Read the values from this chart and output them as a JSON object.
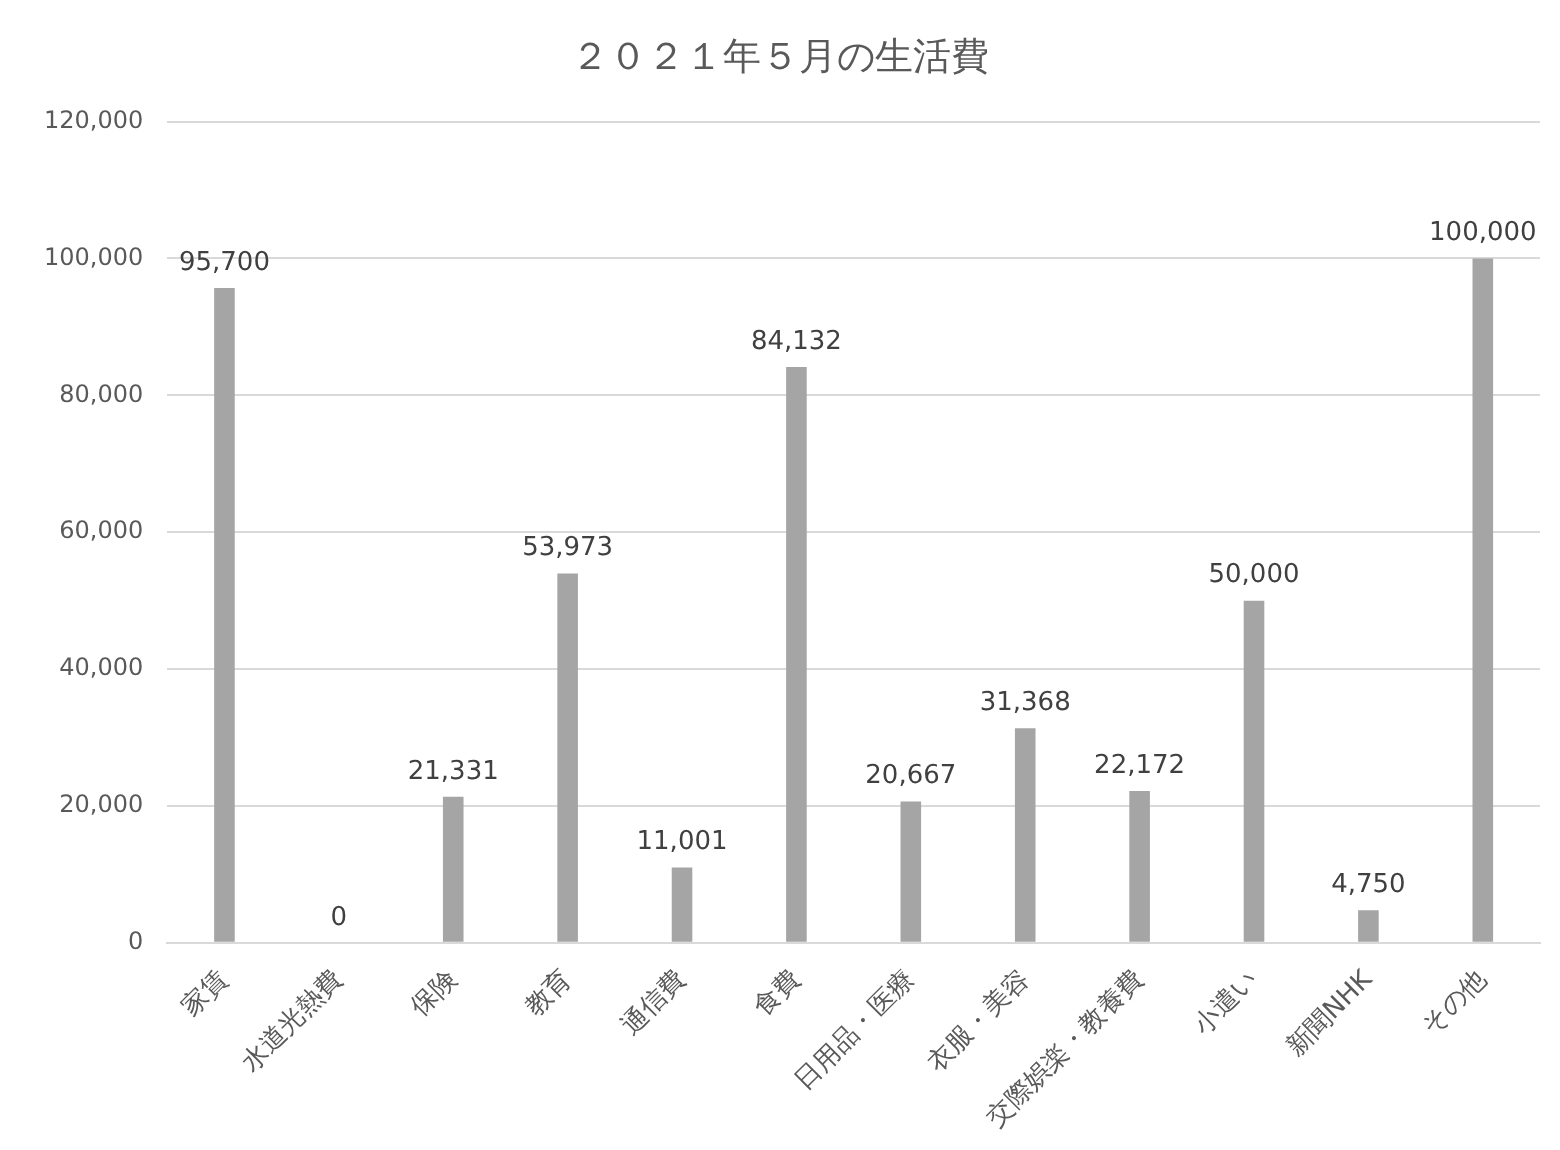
{
  "chart_data": {
    "type": "bar",
    "title": "２０２１年５月の生活費",
    "categories": [
      "家賃",
      "水道光熱費",
      "保険",
      "教育",
      "通信費",
      "食費",
      "日用品・医療",
      "衣服・美容",
      "交際娯楽・教養費",
      "小遣い",
      "新聞NHK",
      "その他"
    ],
    "values": [
      95700,
      0,
      21331,
      53973,
      11001,
      84132,
      20667,
      31368,
      22172,
      50000,
      4750,
      100000
    ],
    "color": "#a5a5a5",
    "value_labels": [
      "95,700",
      "0",
      "21,331",
      "53,973",
      "11,001",
      "84,132",
      "20,667",
      "31,368",
      "22,172",
      "50,000",
      "4,750",
      "100,000"
    ],
    "ylim": [
      0,
      120000
    ],
    "yticks": [
      0,
      {
        "value": 20000,
        "label": "20,000"
      },
      {
        "value": 40000,
        "label": "40,000"
      },
      {
        "value": 60000,
        "label": "60,000"
      },
      {
        "value": 80000,
        "label": "80,000"
      },
      {
        "value": 100000,
        "label": "100,000"
      },
      {
        "value": 120000,
        "label": "120,000"
      }
    ],
    "grid": "y",
    "legend": false
  }
}
